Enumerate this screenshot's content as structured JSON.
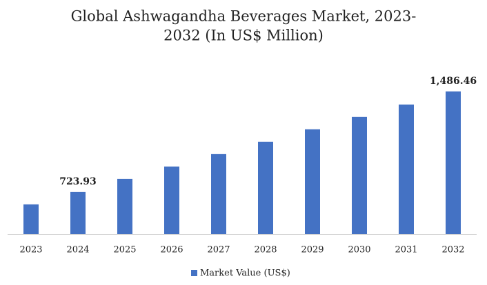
{
  "chart_data": {
    "type": "bar",
    "title": [
      "Global Ashwagandha Beverages Market, 2023-",
      "2032 (In US$ Million)"
    ],
    "categories": [
      "2023",
      "2024",
      "2025",
      "2026",
      "2027",
      "2028",
      "2029",
      "2030",
      "2031",
      "2032"
    ],
    "series": [
      {
        "name": "Market Value (US$)",
        "color": "#4472c4",
        "values": [
          630,
          723.93,
          823,
          917,
          1011,
          1105,
          1199,
          1293,
          1387,
          1486.46
        ],
        "value_labels": [
          null,
          "723.93",
          null,
          null,
          null,
          null,
          null,
          null,
          null,
          "1,486.46"
        ]
      }
    ],
    "ylim": [
      405,
      1600
    ],
    "legend": "bottom"
  }
}
